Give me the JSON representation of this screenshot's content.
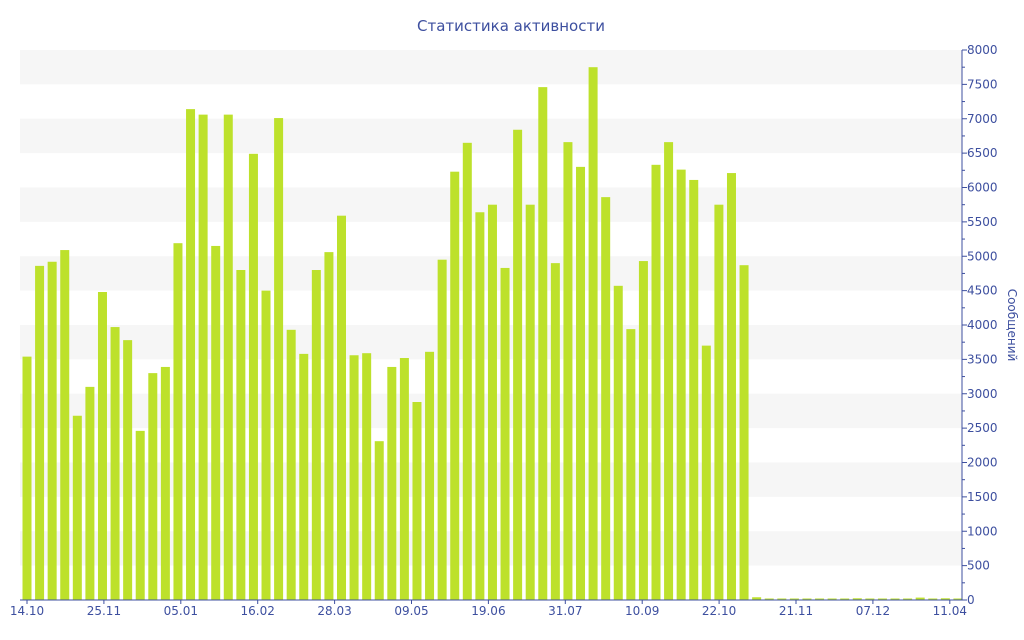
{
  "chart_data": {
    "type": "bar",
    "title": "Статистика активности",
    "xlabel": "",
    "ylabel": "Сообщений",
    "ylim": [
      0,
      8000
    ],
    "yticks": [
      0,
      500,
      1000,
      1500,
      2000,
      2500,
      3000,
      3500,
      4000,
      4500,
      5000,
      5500,
      6000,
      6500,
      7000,
      7500,
      8000
    ],
    "xtick_labels": [
      "14.10",
      "25.11",
      "05.01",
      "16.02",
      "28.03",
      "09.05",
      "19.06",
      "31.07",
      "10.09",
      "22.10",
      "21.11",
      "07.12",
      "11.04"
    ],
    "grid": "alternating horizontal bands",
    "y_axis_side": "right",
    "values": [
      3540,
      4860,
      4920,
      5090,
      2680,
      3100,
      4480,
      3970,
      3780,
      2460,
      3300,
      3390,
      5190,
      7140,
      7060,
      5150,
      7060,
      4800,
      6490,
      4500,
      7010,
      3930,
      3580,
      4800,
      5060,
      5590,
      3560,
      3590,
      2310,
      3390,
      3520,
      2880,
      3610,
      4950,
      6230,
      6650,
      5640,
      5750,
      4830,
      6840,
      5750,
      7460,
      4900,
      6660,
      6300,
      7750,
      5860,
      4570,
      3940,
      4930,
      6330,
      6660,
      6260,
      6110,
      3700,
      5750,
      6210,
      4870,
      40,
      15,
      15,
      10,
      10,
      10,
      15,
      15,
      25,
      15,
      15,
      15,
      20,
      35,
      20,
      25,
      15
    ],
    "colors": {
      "bar": "#bde12b",
      "axis": "#3d4f9f",
      "band": "#f6f6f6"
    }
  }
}
